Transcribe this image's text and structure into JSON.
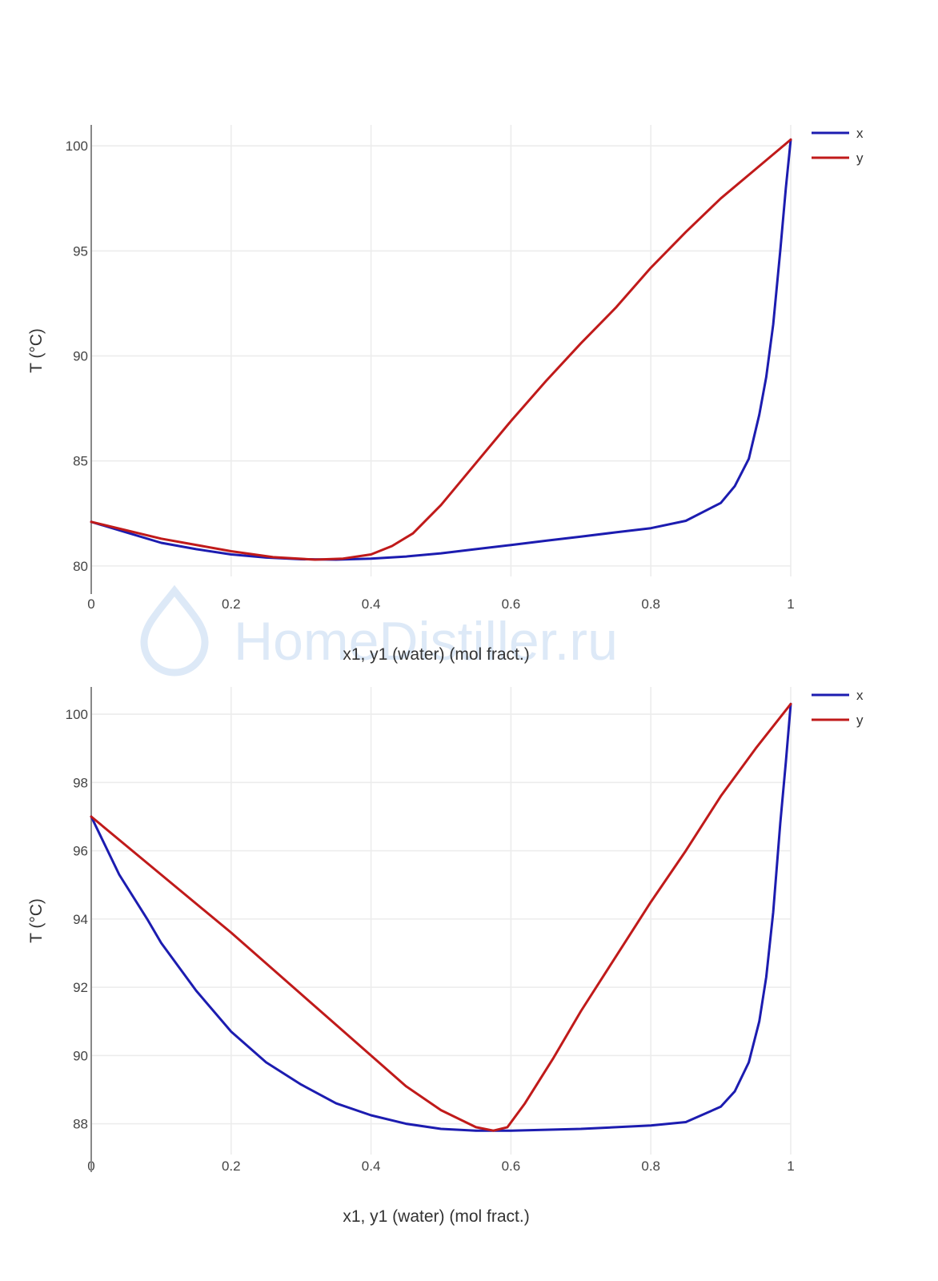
{
  "watermark": {
    "text": "HomeDistiller.ru",
    "color": "#dde9f7"
  },
  "colors": {
    "x": "#1c1cb0",
    "y": "#c01a1a",
    "grid": "#ececec",
    "axis": "#888888"
  },
  "chart_data": [
    {
      "type": "line",
      "title": "",
      "xlabel": "x1, y1 (water) (mol fract.)",
      "ylabel": "T (°C)",
      "xlim": [
        0,
        1
      ],
      "ylim": [
        79.5,
        101
      ],
      "xticks": [
        0,
        0.2,
        0.4,
        0.6,
        0.8,
        1
      ],
      "xtick_labels": [
        "0",
        "0.2",
        "0.4",
        "0.6",
        "0.8",
        "1"
      ],
      "yticks": [
        80,
        85,
        90,
        95,
        100
      ],
      "ytick_labels": [
        "80",
        "85",
        "90",
        "95",
        "100"
      ],
      "grid": true,
      "legend_position": "top-right",
      "series": [
        {
          "name": "x",
          "color": "#1c1cb0",
          "points": [
            [
              0,
              82.1
            ],
            [
              0.05,
              81.6
            ],
            [
              0.1,
              81.1
            ],
            [
              0.15,
              80.8
            ],
            [
              0.2,
              80.55
            ],
            [
              0.25,
              80.4
            ],
            [
              0.3,
              80.32
            ],
            [
              0.35,
              80.3
            ],
            [
              0.4,
              80.35
            ],
            [
              0.45,
              80.45
            ],
            [
              0.5,
              80.6
            ],
            [
              0.55,
              80.8
            ],
            [
              0.6,
              81.0
            ],
            [
              0.65,
              81.2
            ],
            [
              0.7,
              81.4
            ],
            [
              0.75,
              81.6
            ],
            [
              0.8,
              81.8
            ],
            [
              0.85,
              82.15
            ],
            [
              0.9,
              83.0
            ],
            [
              0.92,
              83.8
            ],
            [
              0.94,
              85.1
            ],
            [
              0.955,
              87.2
            ],
            [
              0.965,
              89.0
            ],
            [
              0.975,
              91.5
            ],
            [
              0.985,
              95.0
            ],
            [
              0.993,
              98.0
            ],
            [
              1.0,
              100.3
            ]
          ]
        },
        {
          "name": "y",
          "color": "#c01a1a",
          "points": [
            [
              0,
              82.1
            ],
            [
              0.1,
              81.3
            ],
            [
              0.2,
              80.7
            ],
            [
              0.26,
              80.42
            ],
            [
              0.32,
              80.3
            ],
            [
              0.36,
              80.35
            ],
            [
              0.4,
              80.55
            ],
            [
              0.43,
              80.95
            ],
            [
              0.46,
              81.55
            ],
            [
              0.5,
              82.9
            ],
            [
              0.55,
              84.9
            ],
            [
              0.6,
              86.9
            ],
            [
              0.65,
              88.8
            ],
            [
              0.7,
              90.6
            ],
            [
              0.75,
              92.3
            ],
            [
              0.8,
              94.2
            ],
            [
              0.85,
              95.9
            ],
            [
              0.9,
              97.5
            ],
            [
              0.95,
              98.9
            ],
            [
              1.0,
              100.3
            ]
          ]
        }
      ]
    },
    {
      "type": "line",
      "title": "",
      "xlabel": "x1, y1 (water) (mol fract.)",
      "ylabel": "T (°C)",
      "xlim": [
        0,
        1
      ],
      "ylim": [
        87.1,
        100.8
      ],
      "xticks": [
        0,
        0.2,
        0.4,
        0.6,
        0.8,
        1
      ],
      "xtick_labels": [
        "0",
        "0.2",
        "0.4",
        "0.6",
        "0.8",
        "1"
      ],
      "yticks": [
        88,
        90,
        92,
        94,
        96,
        98,
        100
      ],
      "ytick_labels": [
        "88",
        "90",
        "92",
        "94",
        "96",
        "98",
        "100"
      ],
      "grid": true,
      "legend_position": "top-right",
      "series": [
        {
          "name": "x",
          "color": "#1c1cb0",
          "points": [
            [
              0,
              97.0
            ],
            [
              0.04,
              95.3
            ],
            [
              0.08,
              94.0
            ],
            [
              0.1,
              93.3
            ],
            [
              0.15,
              91.9
            ],
            [
              0.2,
              90.7
            ],
            [
              0.25,
              89.8
            ],
            [
              0.3,
              89.15
            ],
            [
              0.35,
              88.6
            ],
            [
              0.4,
              88.25
            ],
            [
              0.45,
              88.0
            ],
            [
              0.5,
              87.85
            ],
            [
              0.55,
              87.8
            ],
            [
              0.6,
              87.8
            ],
            [
              0.7,
              87.85
            ],
            [
              0.8,
              87.95
            ],
            [
              0.85,
              88.05
            ],
            [
              0.9,
              88.5
            ],
            [
              0.92,
              88.95
            ],
            [
              0.94,
              89.8
            ],
            [
              0.955,
              91.0
            ],
            [
              0.965,
              92.3
            ],
            [
              0.975,
              94.2
            ],
            [
              0.985,
              96.8
            ],
            [
              0.993,
              98.6
            ],
            [
              1.0,
              100.3
            ]
          ]
        },
        {
          "name": "y",
          "color": "#c01a1a",
          "points": [
            [
              0,
              97.0
            ],
            [
              0.1,
              95.3
            ],
            [
              0.2,
              93.6
            ],
            [
              0.3,
              91.8
            ],
            [
              0.4,
              90.0
            ],
            [
              0.45,
              89.1
            ],
            [
              0.5,
              88.4
            ],
            [
              0.55,
              87.9
            ],
            [
              0.575,
              87.8
            ],
            [
              0.595,
              87.9
            ],
            [
              0.62,
              88.6
            ],
            [
              0.66,
              89.9
            ],
            [
              0.7,
              91.3
            ],
            [
              0.75,
              92.9
            ],
            [
              0.8,
              94.5
            ],
            [
              0.85,
              96.0
            ],
            [
              0.9,
              97.6
            ],
            [
              0.95,
              99.0
            ],
            [
              1.0,
              100.3
            ]
          ]
        }
      ]
    }
  ]
}
